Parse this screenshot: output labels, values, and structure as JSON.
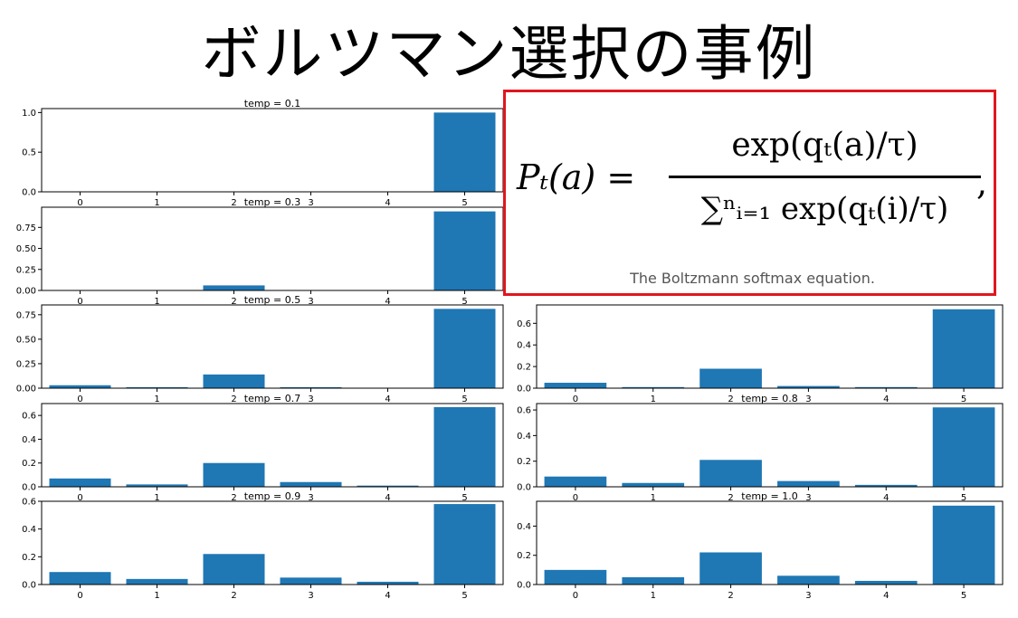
{
  "title": "ボルツマン選択の事例",
  "formula": {
    "lhs": "Pₜ(a) =",
    "numerator": "exp(qₜ(a)/τ)",
    "denominator": "∑ⁿᵢ₌₁ exp(qₜ(i)/τ)",
    "trailing": ",",
    "caption": "The Boltzmann softmax equation."
  },
  "chart_data": [
    {
      "type": "bar",
      "title": "temp = 0.1",
      "categories": [
        "0",
        "1",
        "2",
        "3",
        "4",
        "5"
      ],
      "values": [
        0.0,
        0.0,
        0.0,
        0.0,
        0.0,
        1.0
      ],
      "ylim": [
        0,
        1.05
      ],
      "yticks": [
        "0.0",
        "0.5",
        "1.0"
      ],
      "ytick_values": [
        0,
        0.5,
        1.0
      ],
      "bar_color": "#1f77b4"
    },
    {
      "type": "bar",
      "title": "temp = 0.3",
      "categories": [
        "0",
        "1",
        "2",
        "3",
        "4",
        "5"
      ],
      "values": [
        0.0,
        0.0,
        0.06,
        0.0,
        0.0,
        0.94
      ],
      "ylim": [
        0,
        0.99
      ],
      "yticks": [
        "0.00",
        "0.25",
        "0.50",
        "0.75"
      ],
      "ytick_values": [
        0,
        0.25,
        0.5,
        0.75
      ],
      "bar_color": "#1f77b4"
    },
    {
      "type": "bar",
      "title": "temp = 0.5",
      "categories": [
        "0",
        "1",
        "2",
        "3",
        "4",
        "5"
      ],
      "values": [
        0.03,
        0.01,
        0.14,
        0.01,
        0.0,
        0.81
      ],
      "ylim": [
        0,
        0.85
      ],
      "yticks": [
        "0.00",
        "0.25",
        "0.50",
        "0.75"
      ],
      "ytick_values": [
        0,
        0.25,
        0.5,
        0.75
      ],
      "bar_color": "#1f77b4"
    },
    {
      "type": "bar",
      "title": "",
      "categories": [
        "0",
        "1",
        "2",
        "3",
        "4",
        "5"
      ],
      "values": [
        0.05,
        0.01,
        0.18,
        0.02,
        0.01,
        0.73
      ],
      "ylim": [
        0,
        0.77
      ],
      "yticks": [
        "0.0",
        "0.2",
        "0.4",
        "0.6"
      ],
      "ytick_values": [
        0,
        0.2,
        0.4,
        0.6
      ],
      "bar_color": "#1f77b4"
    },
    {
      "type": "bar",
      "title": "temp = 0.7",
      "categories": [
        "0",
        "1",
        "2",
        "3",
        "4",
        "5"
      ],
      "values": [
        0.07,
        0.02,
        0.2,
        0.04,
        0.01,
        0.67
      ],
      "ylim": [
        0,
        0.7
      ],
      "yticks": [
        "0.0",
        "0.2",
        "0.4",
        "0.6"
      ],
      "ytick_values": [
        0,
        0.2,
        0.4,
        0.6
      ],
      "bar_color": "#1f77b4"
    },
    {
      "type": "bar",
      "title": "temp = 0.8",
      "categories": [
        "0",
        "1",
        "2",
        "3",
        "4",
        "5"
      ],
      "values": [
        0.08,
        0.03,
        0.21,
        0.045,
        0.015,
        0.62
      ],
      "ylim": [
        0,
        0.65
      ],
      "yticks": [
        "0.0",
        "0.2",
        "0.4",
        "0.6"
      ],
      "ytick_values": [
        0,
        0.2,
        0.4,
        0.6
      ],
      "bar_color": "#1f77b4"
    },
    {
      "type": "bar",
      "title": "temp = 0.9",
      "categories": [
        "0",
        "1",
        "2",
        "3",
        "4",
        "5"
      ],
      "values": [
        0.09,
        0.04,
        0.22,
        0.05,
        0.02,
        0.58
      ],
      "ylim": [
        0,
        0.6
      ],
      "yticks": [
        "0.0",
        "0.2",
        "0.4",
        "0.6"
      ],
      "ytick_values": [
        0,
        0.2,
        0.4,
        0.6
      ],
      "bar_color": "#1f77b4"
    },
    {
      "type": "bar",
      "title": "temp = 1.0",
      "categories": [
        "0",
        "1",
        "2",
        "3",
        "4",
        "5"
      ],
      "values": [
        0.1,
        0.05,
        0.22,
        0.06,
        0.025,
        0.54
      ],
      "ylim": [
        0,
        0.57
      ],
      "yticks": [
        "0.0",
        "0.2",
        "0.4"
      ],
      "ytick_values": [
        0,
        0.2,
        0.4
      ],
      "bar_color": "#1f77b4"
    }
  ]
}
